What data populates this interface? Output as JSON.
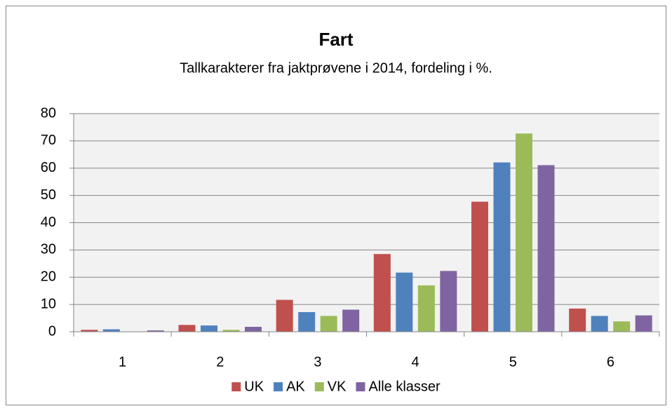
{
  "chart_data": {
    "type": "bar",
    "title": "Fart",
    "subtitle": "Tallkarakterer fra jaktprøvene i 2014, fordeling i %.",
    "categories": [
      "1",
      "2",
      "3",
      "4",
      "5",
      "6"
    ],
    "series": [
      {
        "name": "UK",
        "color": "#c0504d",
        "values": [
          0.7,
          2.5,
          11.7,
          28.5,
          47.7,
          8.5
        ]
      },
      {
        "name": "AK",
        "color": "#4f81bd",
        "values": [
          0.9,
          2.3,
          7.2,
          21.7,
          62.1,
          5.8
        ]
      },
      {
        "name": "VK",
        "color": "#9bbb59",
        "values": [
          0,
          0.7,
          5.8,
          17,
          72.7,
          3.8
        ]
      },
      {
        "name": "Alle klasser",
        "color": "#8064a2",
        "values": [
          0.5,
          1.8,
          8.1,
          22.3,
          61.1,
          6
        ]
      }
    ],
    "ylim": [
      0,
      80
    ],
    "yticks": [
      0,
      10,
      20,
      30,
      40,
      50,
      60,
      70,
      80
    ],
    "grid": true,
    "legend": "bottom"
  }
}
